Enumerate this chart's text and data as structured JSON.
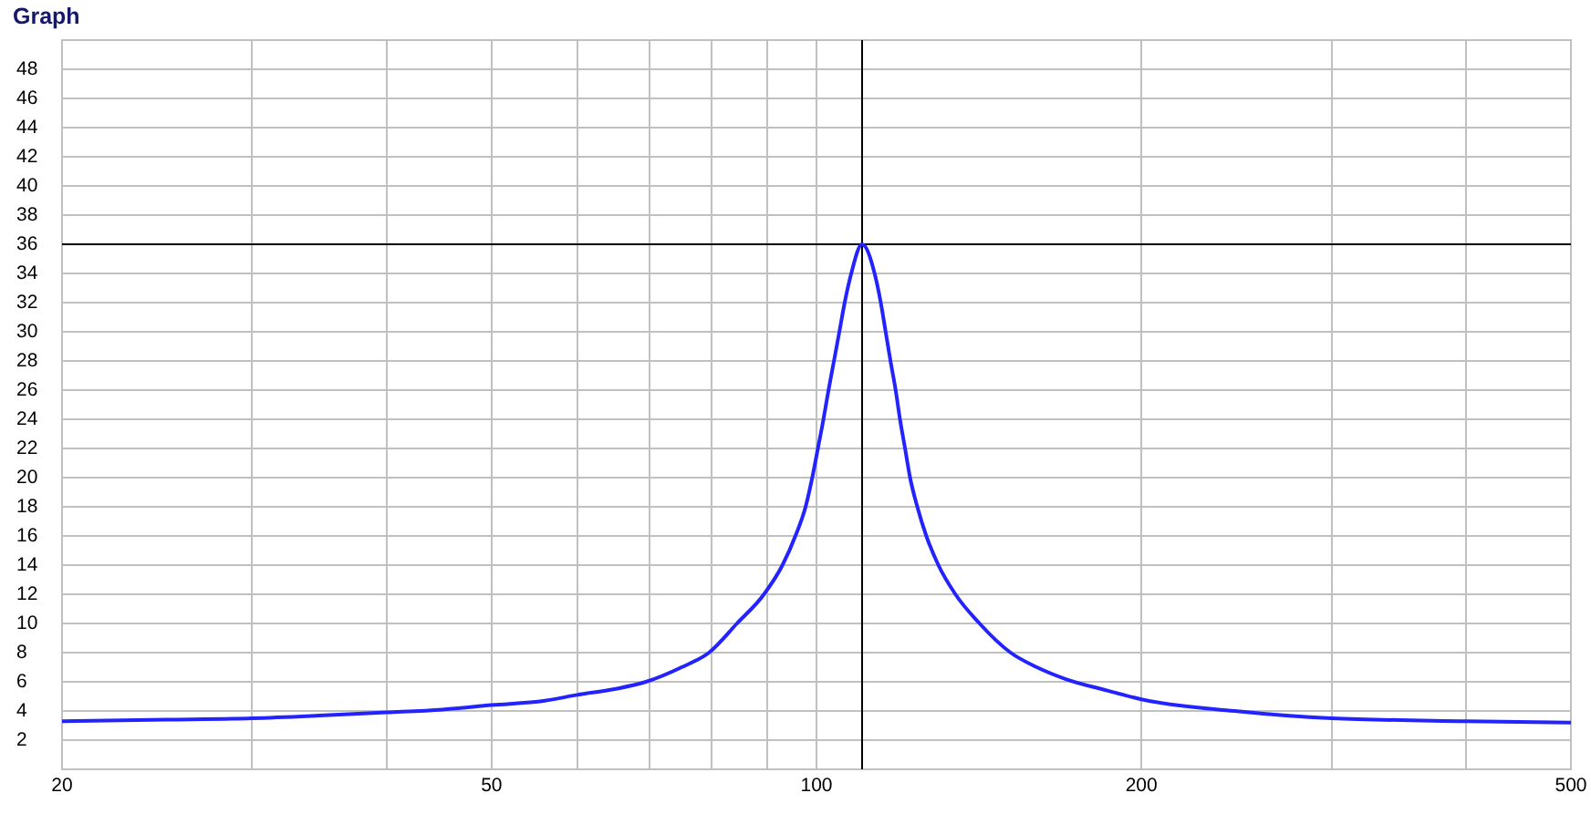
{
  "chart_data": {
    "type": "line",
    "title": "Graph",
    "x": [
      20,
      25,
      30,
      35,
      40,
      45,
      50,
      56,
      60,
      65,
      69.5,
      75,
      79.5,
      84.4,
      89.4,
      93.0,
      95.6,
      97.7,
      99.1,
      100.3,
      101.5,
      102.6,
      103.8,
      105.0,
      106.2,
      107.7,
      110.2,
      113.2,
      114.7,
      115.9,
      117.1,
      118.4,
      119.5,
      120.8,
      122.1,
      124.0,
      126.4,
      129.7,
      134.5,
      141.6,
      151.3,
      160,
      170,
      186,
      200,
      244,
      300,
      400,
      500
    ],
    "series": [
      {
        "color": "#2323ff",
        "values": [
          3.3,
          3.4,
          3.5,
          3.7,
          3.9,
          4.1,
          4.4,
          4.7,
          5.1,
          5.5,
          6,
          7.0,
          8,
          10,
          12,
          14,
          16,
          18,
          20,
          22,
          24,
          26,
          28,
          30,
          32,
          34,
          36,
          34,
          32,
          30,
          28,
          26,
          24,
          22,
          20,
          18,
          16,
          14,
          12,
          10,
          8,
          7.0,
          6.2,
          5.4,
          4.8,
          4.0,
          3.5,
          3.3,
          3.2
        ]
      }
    ],
    "log": "x",
    "xlim": [
      20,
      500
    ],
    "xticks": [
      20,
      {
        "value": 30,
        "label": null
      },
      {
        "value": 40,
        "label": null
      },
      50,
      {
        "value": 60,
        "label": null
      },
      {
        "value": 70,
        "label": null
      },
      {
        "value": 80,
        "label": null
      },
      {
        "value": 90,
        "label": null
      },
      100,
      200,
      {
        "value": 300,
        "label": null
      },
      {
        "value": 400,
        "label": null
      },
      500
    ],
    "ylim": [
      0,
      50
    ],
    "yticks": [
      2,
      4,
      6,
      8,
      10,
      12,
      14,
      16,
      18,
      20,
      22,
      24,
      26,
      28,
      30,
      32,
      34,
      36,
      38,
      40,
      42,
      44,
      46,
      48
    ],
    "grid": true,
    "ref_lines": [
      {
        "axis": "x",
        "value": 110.2,
        "color": "#000000"
      },
      {
        "axis": "y",
        "value": 36,
        "color": "#000000"
      }
    ]
  }
}
